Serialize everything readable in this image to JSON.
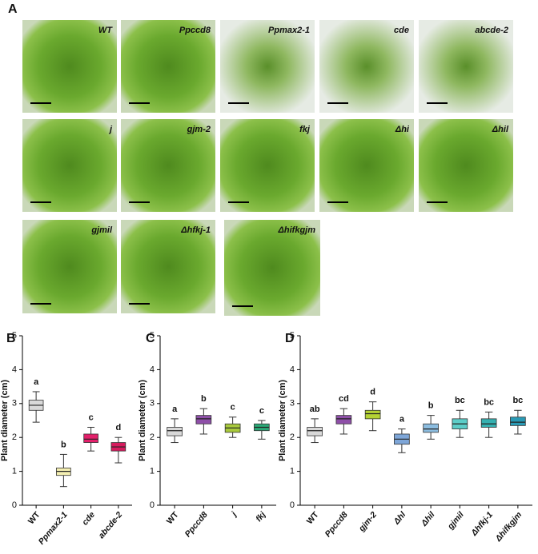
{
  "panel_a": {
    "label": "A",
    "images": [
      "WT",
      "Ppccd8",
      "Ppmax2-1",
      "cde",
      "abcde-2",
      "j",
      "gjm-2",
      "fkj",
      "Δhi",
      "Δhil",
      "gjmil",
      "Δhfkj-1",
      "Δhifkgjm"
    ]
  },
  "chart_data": [
    {
      "type": "box",
      "panel": "B",
      "ylabel": "Plant diameter (cm)",
      "ylim": [
        0,
        5
      ],
      "yticks": [
        0,
        1,
        2,
        3,
        4,
        5
      ],
      "categories": [
        "WT",
        "Ppmax2-1",
        "cde",
        "abcde-2"
      ],
      "colors": [
        "#d9d9d9",
        "#f4efb2",
        "#e3206b",
        "#d61c5e"
      ],
      "min": [
        2.45,
        0.55,
        1.6,
        1.25
      ],
      "q1": [
        2.8,
        0.88,
        1.85,
        1.6
      ],
      "median": [
        2.95,
        1.0,
        1.95,
        1.72
      ],
      "q3": [
        3.1,
        1.1,
        2.1,
        1.85
      ],
      "max": [
        3.35,
        1.5,
        2.3,
        2.0
      ],
      "letters": [
        "a",
        "b",
        "c",
        "d"
      ]
    },
    {
      "type": "box",
      "panel": "C",
      "ylabel": "Plant diameter (cm)",
      "ylim": [
        0,
        5
      ],
      "yticks": [
        0,
        1,
        2,
        3,
        4,
        5
      ],
      "categories": [
        "WT",
        "Ppccd8",
        "j",
        "fkj"
      ],
      "colors": [
        "#d9d9d9",
        "#8e4fa8",
        "#a8c93c",
        "#2aa876"
      ],
      "min": [
        1.85,
        2.1,
        2.0,
        1.95
      ],
      "q1": [
        2.05,
        2.4,
        2.15,
        2.2
      ],
      "median": [
        2.2,
        2.55,
        2.28,
        2.3
      ],
      "q3": [
        2.3,
        2.65,
        2.4,
        2.4
      ],
      "max": [
        2.55,
        2.85,
        2.6,
        2.5
      ],
      "letters": [
        "a",
        "b",
        "c",
        "c"
      ]
    },
    {
      "type": "box",
      "panel": "D",
      "ylabel": "Plant diameter (cm)",
      "ylim": [
        0,
        5
      ],
      "yticks": [
        0,
        1,
        2,
        3,
        4,
        5
      ],
      "categories": [
        "WT",
        "Ppccd8",
        "gjm-2",
        "Δhl",
        "Δhil",
        "gjmil",
        "Δhfkj-1",
        "Δhifkgjm"
      ],
      "colors": [
        "#d9d9d9",
        "#8e4fa8",
        "#b5d334",
        "#7ea6d8",
        "#8cbde0",
        "#5ccdc8",
        "#35b0b0",
        "#2a9ab5"
      ],
      "min": [
        1.85,
        2.1,
        2.2,
        1.55,
        1.95,
        2.0,
        2.0,
        2.1
      ],
      "q1": [
        2.05,
        2.4,
        2.55,
        1.8,
        2.15,
        2.25,
        2.3,
        2.35
      ],
      "median": [
        2.2,
        2.55,
        2.7,
        1.95,
        2.25,
        2.4,
        2.4,
        2.45
      ],
      "q3": [
        2.3,
        2.65,
        2.8,
        2.1,
        2.4,
        2.55,
        2.55,
        2.6
      ],
      "max": [
        2.55,
        2.85,
        3.05,
        2.25,
        2.65,
        2.8,
        2.75,
        2.8
      ],
      "letters": [
        "ab",
        "cd",
        "d",
        "a",
        "b",
        "bc",
        "bc",
        "bc"
      ]
    }
  ]
}
